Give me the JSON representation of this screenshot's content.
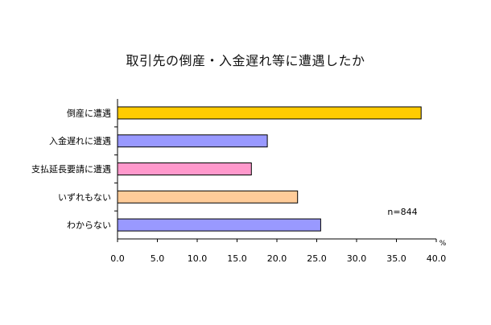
{
  "chart_data": {
    "type": "bar",
    "orientation": "horizontal",
    "title": "取引先の倒産・入金遅れ等に遭遇したか",
    "categories": [
      "倒産に遭遇",
      "入金遅れに遭遇",
      "支払延長要請に遭遇",
      "いずれもない",
      "わからない"
    ],
    "values": [
      38.1,
      18.8,
      16.8,
      22.6,
      25.5
    ],
    "bar_colors": [
      "#FFCC00",
      "#9999FF",
      "#FF99CC",
      "#FFCC99",
      "#9999FF"
    ],
    "xlim": [
      0,
      40
    ],
    "x_ticks": [
      "0.0",
      "5.0",
      "10.0",
      "15.0",
      "20.0",
      "25.0",
      "30.0",
      "35.0",
      "40.0"
    ],
    "x_unit": "%",
    "annotation": "n=844",
    "grid": false
  }
}
